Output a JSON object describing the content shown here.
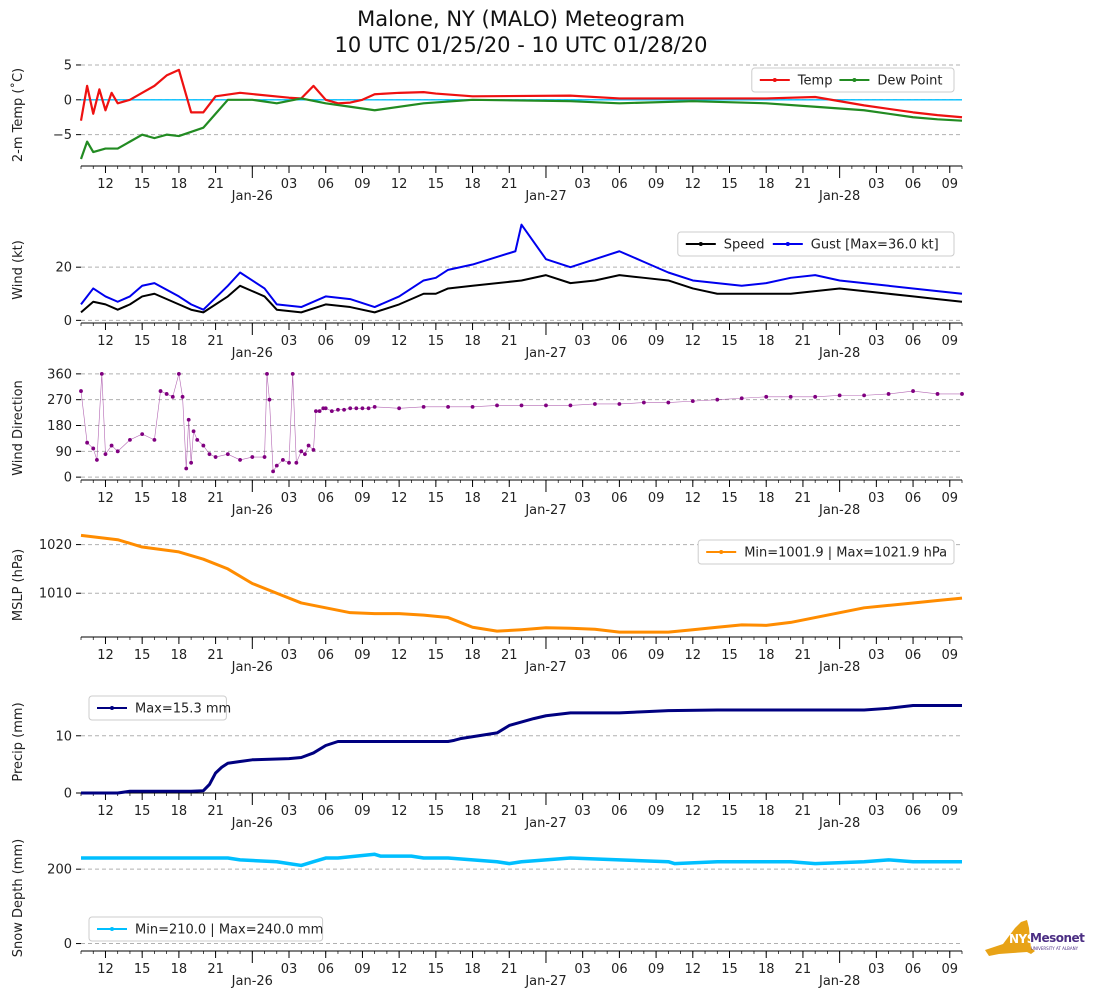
{
  "title": {
    "line1": "Malone, NY (MALO) Meteogram",
    "line2": "10 UTC 01/25/20 - 10 UTC 01/28/20"
  },
  "logo": {
    "nys": "NYS",
    "mesonet": "Mesonet",
    "sub": "UNIVERSITY AT ALBANY"
  },
  "colors": {
    "temp": "#ee1111",
    "dew": "#228b22",
    "speed": "#000000",
    "gust": "#0000ee",
    "dir": "#800080",
    "mslp": "#ff8c00",
    "precip": "#000080",
    "snow": "#00bfff",
    "zero_line": "#00bfff",
    "grid": "#b0b0b0",
    "logo_gold": "#e8a317",
    "logo_purple": "#4b2e83"
  },
  "chart_data": [
    {
      "type": "line",
      "id": "temp",
      "ylabel": "2-m Temp (˚C)",
      "ylim": [
        -9.5,
        6
      ],
      "yticks": [
        5,
        0,
        -5
      ],
      "ytick_labels": [
        "5",
        "0",
        "−5"
      ],
      "hline": 0,
      "legend": {
        "position": "top-right",
        "entries": [
          "Temp",
          "Dew Point"
        ]
      },
      "series": [
        {
          "name": "Temp",
          "hours": [
            0,
            0.5,
            1,
            1.5,
            2,
            2.5,
            3,
            4,
            5,
            6,
            7,
            8,
            9,
            10,
            11,
            13,
            17,
            18,
            19,
            20,
            21,
            22,
            23,
            24,
            26,
            28,
            29,
            32,
            40,
            44,
            50,
            56,
            60,
            64,
            68,
            70,
            72
          ],
          "values": [
            -3,
            2,
            -2,
            1.5,
            -1.5,
            1,
            -0.5,
            0,
            1,
            2,
            3.5,
            4.3,
            -1.8,
            -1.8,
            0.5,
            1,
            0.3,
            0.2,
            2,
            0,
            -0.5,
            -0.4,
            0,
            0.8,
            1,
            1.1,
            0.9,
            0.5,
            0.6,
            0.2,
            0.2,
            0.2,
            0.4,
            -0.8,
            -1.8,
            -2.2,
            -2.5
          ]
        },
        {
          "name": "Dew Point",
          "hours": [
            0,
            0.5,
            1,
            2,
            3,
            4,
            5,
            6,
            7,
            8,
            10,
            11,
            12,
            14,
            16,
            18,
            20,
            22,
            24,
            28,
            32,
            40,
            44,
            50,
            56,
            60,
            64,
            68,
            70,
            72
          ],
          "values": [
            -8.5,
            -6,
            -7.5,
            -7,
            -7,
            -6,
            -5,
            -5.5,
            -5,
            -5.2,
            -4,
            -2,
            0,
            0,
            -0.5,
            0.2,
            -0.5,
            -1,
            -1.5,
            -0.5,
            0,
            -0.2,
            -0.5,
            -0.2,
            -0.5,
            -1,
            -1.5,
            -2.5,
            -2.8,
            -3
          ]
        }
      ]
    },
    {
      "type": "line",
      "id": "wind",
      "ylabel": "Wind (kt)",
      "ylim": [
        -1,
        37
      ],
      "yticks": [
        20,
        0
      ],
      "ytick_labels": [
        "20",
        "0"
      ],
      "legend": {
        "position": "top-right",
        "entries": [
          "Speed",
          "Gust [Max=36.0 kt]"
        ]
      },
      "series": [
        {
          "name": "Speed",
          "hours": [
            0,
            1,
            2,
            3,
            4,
            5,
            6,
            8,
            9,
            10,
            12,
            13,
            14,
            15,
            16,
            18,
            20,
            22,
            24,
            26,
            28,
            29,
            30,
            32,
            36,
            38,
            40,
            42,
            44,
            46,
            48,
            50,
            52,
            54,
            56,
            58,
            60,
            62,
            64,
            66,
            68,
            70,
            72
          ],
          "values": [
            3,
            7,
            6,
            4,
            6,
            9,
            10,
            6,
            4,
            3,
            9,
            13,
            11,
            9,
            4,
            3,
            6,
            5,
            3,
            6,
            10,
            10,
            12,
            13,
            15,
            17,
            14,
            15,
            17,
            16,
            15,
            12,
            10,
            10,
            10,
            10,
            11,
            12,
            11,
            10,
            9,
            8,
            7
          ]
        },
        {
          "name": "Gust [Max=36.0 kt]",
          "hours": [
            0,
            1,
            2,
            3,
            4,
            5,
            6,
            8,
            9,
            10,
            12,
            13,
            14,
            15,
            16,
            18,
            20,
            22,
            24,
            26,
            28,
            29,
            30,
            32,
            35.5,
            36,
            38,
            40,
            42,
            44,
            46,
            48,
            50,
            52,
            54,
            56,
            58,
            60,
            62,
            64,
            66,
            68,
            70,
            72
          ],
          "values": [
            6,
            12,
            9,
            7,
            9,
            13,
            14,
            9,
            6,
            4,
            13,
            18,
            15,
            12,
            6,
            5,
            9,
            8,
            5,
            9,
            15,
            16,
            19,
            21,
            26,
            36,
            23,
            20,
            23,
            26,
            22,
            18,
            15,
            14,
            13,
            14,
            16,
            17,
            15,
            14,
            13,
            12,
            11,
            10
          ]
        }
      ]
    },
    {
      "type": "scatter",
      "id": "direction",
      "ylabel": "Wind Direction",
      "ylim": [
        -10,
        370
      ],
      "yticks": [
        360,
        270,
        180,
        90,
        0
      ],
      "ytick_labels": [
        "360",
        "270",
        "180",
        "90",
        "0"
      ],
      "series": [
        {
          "name": "Direction",
          "hours": [
            0,
            0.5,
            1,
            1.3,
            1.7,
            2,
            2.5,
            3,
            4,
            5,
            6,
            6.5,
            7,
            7.5,
            8,
            8.3,
            8.6,
            8.8,
            9,
            9.2,
            9.5,
            10,
            10.5,
            11,
            12,
            13,
            14,
            15,
            15.2,
            15.4,
            15.7,
            16,
            16.5,
            17,
            17.3,
            17.6,
            18,
            18.3,
            18.6,
            19,
            19.2,
            19.5,
            19.8,
            20,
            20.5,
            21,
            21.5,
            22,
            22.5,
            23,
            23.5,
            24,
            26,
            28,
            30,
            32,
            34,
            36,
            38,
            40,
            42,
            44,
            46,
            48,
            50,
            52,
            54,
            56,
            58,
            60,
            62,
            64,
            66,
            68,
            70,
            72
          ],
          "values": [
            300,
            120,
            100,
            60,
            360,
            80,
            110,
            90,
            130,
            150,
            130,
            300,
            290,
            280,
            360,
            280,
            30,
            200,
            50,
            160,
            130,
            110,
            80,
            70,
            80,
            60,
            70,
            70,
            360,
            270,
            20,
            40,
            60,
            50,
            360,
            50,
            90,
            80,
            110,
            95,
            230,
            230,
            240,
            240,
            230,
            235,
            235,
            240,
            240,
            240,
            240,
            245,
            240,
            245,
            245,
            245,
            250,
            250,
            250,
            250,
            255,
            255,
            260,
            260,
            265,
            270,
            275,
            280,
            280,
            280,
            285,
            285,
            290,
            300,
            290,
            290
          ]
        }
      ]
    },
    {
      "type": "line",
      "id": "mslp",
      "ylabel": "MSLP (hPa)",
      "ylim": [
        1001,
        1023
      ],
      "yticks": [
        1020,
        1010
      ],
      "ytick_labels": [
        "1020",
        "1010"
      ],
      "legend": {
        "position": "top-right",
        "entries": [
          "Min=1001.9 | Max=1021.9 hPa"
        ]
      },
      "series": [
        {
          "name": "Min=1001.9 | Max=1021.9 hPa",
          "hours": [
            0,
            3,
            5,
            8,
            10,
            12,
            14,
            16,
            18,
            20,
            22,
            24,
            26,
            28,
            30,
            32,
            34,
            36,
            38,
            40,
            42,
            44,
            46,
            48,
            50,
            52,
            54,
            56,
            58,
            60,
            62,
            64,
            66,
            68,
            70,
            72
          ],
          "values": [
            1021.9,
            1021,
            1019.5,
            1018.5,
            1017,
            1015,
            1012,
            1010,
            1008,
            1007,
            1006,
            1005.8,
            1005.8,
            1005.5,
            1005,
            1003,
            1002.2,
            1002.5,
            1002.9,
            1002.8,
            1002.6,
            1002,
            1002,
            1002,
            1002.5,
            1003,
            1003.5,
            1003.4,
            1004,
            1005,
            1006,
            1007,
            1007.5,
            1008,
            1008.5,
            1009
          ]
        }
      ]
    },
    {
      "type": "area",
      "id": "precip",
      "ylabel": "Precip (mm)",
      "ylim": [
        0,
        18
      ],
      "yticks": [
        10,
        0
      ],
      "ytick_labels": [
        "10",
        "0"
      ],
      "legend": {
        "position": "top-left",
        "entries": [
          "Max=15.3 mm"
        ]
      },
      "series": [
        {
          "name": "Max=15.3 mm",
          "hours": [
            0,
            3,
            4,
            9,
            10,
            10.5,
            11,
            11.5,
            12,
            13,
            14,
            17,
            18,
            19,
            20,
            21,
            30,
            30.5,
            31,
            34,
            35,
            37,
            38,
            40,
            44,
            46,
            48,
            52,
            54,
            56,
            60,
            64,
            66,
            68,
            72
          ],
          "values": [
            0,
            0,
            0.3,
            0.3,
            0.4,
            1.5,
            3.5,
            4.5,
            5.2,
            5.5,
            5.8,
            6,
            6.2,
            7,
            8.3,
            9,
            9,
            9.2,
            9.5,
            10.5,
            11.8,
            13,
            13.5,
            14,
            14,
            14.2,
            14.4,
            14.5,
            14.5,
            14.5,
            14.5,
            14.5,
            14.8,
            15.3,
            15.3
          ]
        }
      ]
    },
    {
      "type": "line",
      "id": "snow",
      "ylabel": "Snow Depth (mm)",
      "ylim": [
        -20,
        265
      ],
      "yticks": [
        200,
        0
      ],
      "ytick_labels": [
        "200",
        "0"
      ],
      "legend": {
        "position": "bottom-left",
        "entries": [
          "Min=210.0 | Max=240.0 mm"
        ]
      },
      "series": [
        {
          "name": "Min=210.0 | Max=240.0 mm",
          "hours": [
            0,
            2,
            3,
            6,
            9,
            12,
            13,
            16,
            17,
            18,
            19,
            20,
            21,
            24,
            24.5,
            27,
            28,
            30,
            32,
            34,
            35,
            36,
            38,
            40,
            44,
            48,
            48.5,
            52,
            56,
            58,
            60,
            64,
            66,
            68,
            70,
            72
          ],
          "values": [
            230,
            230,
            230,
            230,
            230,
            230,
            225,
            220,
            215,
            210,
            220,
            230,
            230,
            240,
            235,
            235,
            230,
            230,
            225,
            220,
            215,
            220,
            225,
            230,
            225,
            220,
            215,
            220,
            220,
            220,
            215,
            220,
            225,
            220,
            220,
            220
          ]
        }
      ]
    }
  ],
  "x_axis": {
    "range_hours": [
      0,
      72
    ],
    "ticks": [
      {
        "h": 2,
        "label": "12"
      },
      {
        "h": 5,
        "label": "15"
      },
      {
        "h": 8,
        "label": "18"
      },
      {
        "h": 11,
        "label": "21"
      },
      {
        "h": 17,
        "label": "03"
      },
      {
        "h": 20,
        "label": "06"
      },
      {
        "h": 23,
        "label": "09"
      },
      {
        "h": 26,
        "label": "12"
      },
      {
        "h": 29,
        "label": "15"
      },
      {
        "h": 32,
        "label": "18"
      },
      {
        "h": 35,
        "label": "21"
      },
      {
        "h": 41,
        "label": "03"
      },
      {
        "h": 44,
        "label": "06"
      },
      {
        "h": 47,
        "label": "09"
      },
      {
        "h": 50,
        "label": "12"
      },
      {
        "h": 53,
        "label": "15"
      },
      {
        "h": 56,
        "label": "18"
      },
      {
        "h": 59,
        "label": "21"
      },
      {
        "h": 65,
        "label": "03"
      },
      {
        "h": 68,
        "label": "06"
      },
      {
        "h": 71,
        "label": "09"
      }
    ],
    "day_labels": [
      {
        "h": 14,
        "label": "Jan-26"
      },
      {
        "h": 38,
        "label": "Jan-27"
      },
      {
        "h": 62,
        "label": "Jan-28"
      }
    ]
  }
}
